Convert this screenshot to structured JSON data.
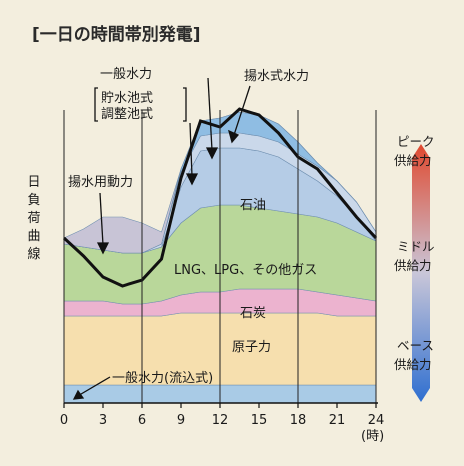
{
  "chart_data": {
    "type": "area",
    "title": "[一日の時間帯別発電]",
    "xunit": "(時)",
    "x": [
      0,
      1.5,
      3,
      4.5,
      6,
      7.5,
      9,
      10.5,
      12,
      13.5,
      15,
      16.5,
      18,
      19.5,
      21,
      22.5,
      24
    ],
    "xlim": [
      0,
      24
    ],
    "xticks": [
      "0",
      "3",
      "6",
      "9",
      "12",
      "15",
      "18",
      "21",
      "24"
    ],
    "layer_colors": {
      "run_of_river": "#a9cbe6",
      "nuclear": "#f6dfae",
      "coal": "#ecb3cf",
      "lng": "#b9d79a",
      "oil": "#b5cce6",
      "general_hydro": "#cad8ea",
      "pumped_storage": "#8fbde3",
      "pumping_power": "#c8c4d6",
      "background": "#f3eede"
    },
    "stack_tops": {
      "run_of_river": [
        6,
        6,
        6,
        6,
        6,
        6,
        6,
        6,
        6,
        6,
        6,
        6,
        6,
        6,
        6,
        6,
        6
      ],
      "nuclear": [
        29,
        29,
        29,
        29,
        29,
        29,
        30,
        30,
        30,
        30,
        30,
        30,
        30,
        30,
        29,
        29,
        29
      ],
      "coal": [
        34,
        34,
        34,
        33,
        33,
        34,
        36,
        37,
        37,
        38,
        38,
        38,
        38,
        37,
        36,
        35,
        34
      ],
      "lng": [
        53,
        52,
        51,
        50,
        50,
        52,
        60,
        65,
        66,
        66,
        65,
        64,
        63,
        62,
        60,
        57,
        54
      ],
      "oil": [
        53,
        52,
        51,
        50,
        50,
        52,
        72,
        84,
        85,
        85,
        84,
        82,
        78,
        74,
        69,
        62,
        54
      ],
      "general_hydro": [
        53,
        52,
        51,
        50,
        50,
        53,
        77,
        89,
        90,
        90,
        89,
        87,
        83,
        79,
        74,
        67,
        57
      ],
      "pumped_storage": [
        53,
        52,
        51,
        50,
        50,
        53,
        78,
        94,
        95,
        97,
        96,
        93,
        87,
        80,
        74,
        67,
        57
      ],
      "pumping_power": [
        55,
        58,
        62,
        62,
        60,
        57,
        78,
        94,
        95,
        97,
        96,
        93,
        87,
        80,
        74,
        67,
        57
      ]
    },
    "load_curve": [
      55,
      49,
      42,
      39,
      41,
      48,
      75,
      94,
      92,
      98,
      96,
      90,
      82,
      78,
      70,
      62,
      55
    ],
    "layer_labels": {
      "oil": "石油",
      "lng": "LNG、LPG、その他ガス",
      "coal": "石炭",
      "nuclear": "原子力",
      "run_of_river": "一般水力(流込式)",
      "pumping_power": "揚水用動力",
      "general_hydro": "一般水力",
      "reservoir_1": "貯水池式",
      "reservoir_2": "調整池式",
      "pumped_storage": "揚水式水力",
      "load_curve": "日負荷曲線"
    },
    "supply_labels": {
      "peak_1": "ピーク",
      "peak_2": "供給力",
      "middle_1": "ミドル",
      "middle_2": "供給力",
      "base_1": "ベース",
      "base_2": "供給力"
    }
  }
}
